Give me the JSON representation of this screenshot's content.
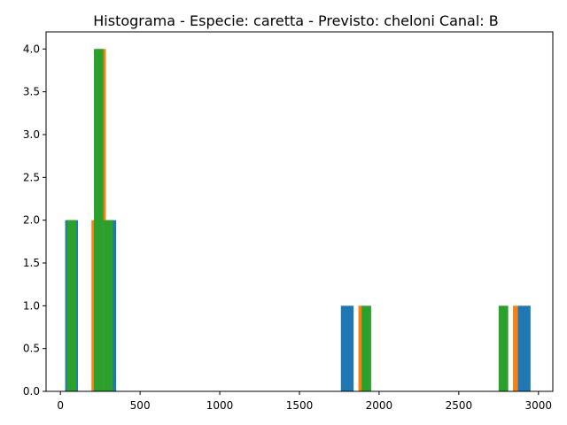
{
  "chart_data": {
    "type": "bar",
    "title": "Histograma - Especie: caretta - Previsto: cheloni Canal: B",
    "xlabel": "",
    "ylabel": "",
    "xlim": [
      -90,
      3090
    ],
    "ylim": [
      0,
      4.2
    ],
    "x_ticks": [
      0,
      500,
      1000,
      1500,
      2000,
      2500,
      3000
    ],
    "y_ticks": [
      0.0,
      0.5,
      1.0,
      1.5,
      2.0,
      2.5,
      3.0,
      3.5,
      4.0
    ],
    "x_tick_labels": [
      "0",
      "500",
      "1000",
      "1500",
      "2000",
      "2500",
      "3000"
    ],
    "y_tick_labels": [
      "0.0",
      "0.5",
      "1.0",
      "1.5",
      "2.0",
      "2.5",
      "3.0",
      "3.5",
      "4.0"
    ],
    "grid": false,
    "legend": "none",
    "series": [
      {
        "color": "#1f77b4",
        "bins": [
          {
            "x0": 30,
            "x1": 110,
            "count": 2
          },
          {
            "x0": 110,
            "x1": 190,
            "count": 0
          },
          {
            "x0": 190,
            "x1": 270,
            "count": 0
          },
          {
            "x0": 270,
            "x1": 350,
            "count": 2
          },
          {
            "x0": 1760,
            "x1": 1840,
            "count": 1
          },
          {
            "x0": 2870,
            "x1": 2950,
            "count": 1
          }
        ]
      },
      {
        "color": "#ff7f0e",
        "bins": [
          {
            "x0": 195,
            "x1": 225,
            "count": 2
          },
          {
            "x0": 225,
            "x1": 255,
            "count": 4
          },
          {
            "x0": 255,
            "x1": 285,
            "count": 4
          },
          {
            "x0": 285,
            "x1": 315,
            "count": 2
          },
          {
            "x0": 1870,
            "x1": 1900,
            "count": 1
          },
          {
            "x0": 2840,
            "x1": 2870,
            "count": 1
          }
        ]
      },
      {
        "color": "#2ca02c",
        "bins": [
          {
            "x0": 40,
            "x1": 100,
            "count": 2
          },
          {
            "x0": 210,
            "x1": 270,
            "count": 4
          },
          {
            "x0": 270,
            "x1": 330,
            "count": 2
          },
          {
            "x0": 1890,
            "x1": 1950,
            "count": 1
          },
          {
            "x0": 2750,
            "x1": 2810,
            "count": 1
          }
        ]
      }
    ]
  }
}
